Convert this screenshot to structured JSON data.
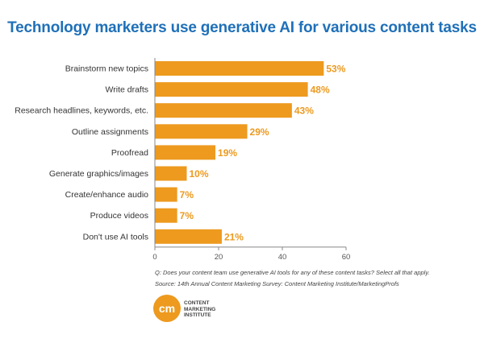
{
  "chart_data": {
    "type": "bar",
    "orientation": "horizontal",
    "title": "Technology marketers use generative AI for various content tasks",
    "categories": [
      "Brainstorm new topics",
      "Write drafts",
      "Research headlines, keywords, etc.",
      "Outline assignments",
      "Proofread",
      "Generate graphics/images",
      "Create/enhance audio",
      "Produce videos",
      "Don't use AI tools"
    ],
    "values": [
      53,
      48,
      43,
      29,
      19,
      10,
      7,
      7,
      21
    ],
    "value_labels": [
      "53%",
      "48%",
      "43%",
      "29%",
      "19%",
      "10%",
      "7%",
      "7%",
      "21%"
    ],
    "xlim": [
      0,
      60
    ],
    "xticks": [
      0,
      20,
      40,
      60
    ],
    "xlabel": "",
    "ylabel": "",
    "grid": false,
    "bar_color": "#ed9a1f"
  },
  "colors": {
    "title": "#1f70b8",
    "bar": "#ed9a1f",
    "value_label": "#ed9a1f"
  },
  "footnote": {
    "question": "Q: Does your content team use generative AI tools for any of these content tasks? Select all that apply.",
    "source": "Source: 14th Annual Content Marketing Survey: Content Marketing Institute/MarketingProfs"
  },
  "logo": {
    "mark": "cm",
    "text": "CONTENT\nMARKETING\nINSTITUTE"
  }
}
